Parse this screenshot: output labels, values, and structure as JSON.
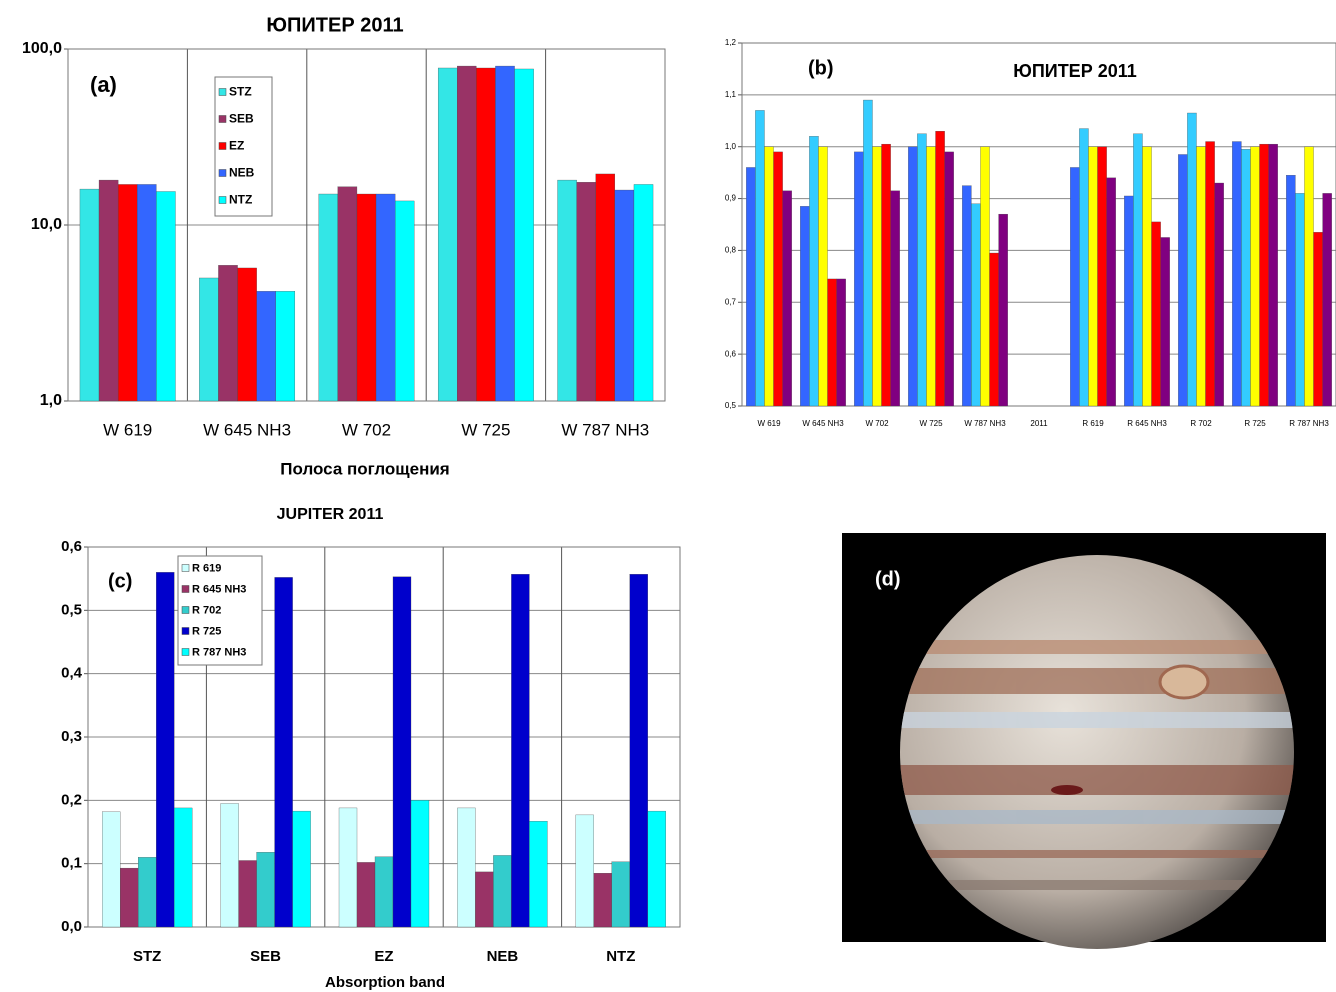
{
  "chart_data": [
    {
      "type": "bar",
      "title": "ЮПИТЕР  2011",
      "annotation": "(a)",
      "x_label": "Полоса поглощения",
      "categories": [
        "W 619",
        "W 645 NH3",
        "W 702",
        "W 725",
        "W 787 NH3"
      ],
      "log_scale": true,
      "grid": true,
      "ylim": [
        1,
        100
      ],
      "yticks": [
        {
          "value": 1,
          "label": "1,0"
        },
        {
          "value": 10,
          "label": "10,0"
        },
        {
          "value": 100,
          "label": "100,0"
        }
      ],
      "series": [
        {
          "name": "STZ",
          "color": "#33e6e6",
          "values": [
            16,
            5,
            15,
            78,
            18
          ]
        },
        {
          "name": "SEB",
          "color": "#993366",
          "values": [
            18,
            5.9,
            16.5,
            80,
            17.5
          ]
        },
        {
          "name": "EZ",
          "color": "#ff0000",
          "values": [
            17,
            5.7,
            15,
            78,
            19.5
          ]
        },
        {
          "name": "NEB",
          "color": "#3366ff",
          "values": [
            17,
            4.2,
            15,
            80,
            15.8
          ]
        },
        {
          "name": "NTZ",
          "color": "#00ffff",
          "values": [
            15.5,
            4.2,
            13.7,
            77,
            17
          ]
        }
      ]
    },
    {
      "type": "bar",
      "title": "ЮПИТЕР   2011",
      "annotation": "(b)",
      "categories": [
        "W 619",
        "W 645 NH3",
        "W 702",
        "W 725",
        "W 787 NH3",
        "2011",
        "R 619",
        "R 645 NH3",
        "R 702",
        "R 725",
        "R 787 NH3"
      ],
      "grid": true,
      "ylim": [
        0.5,
        1.2
      ],
      "yticks": [
        {
          "value": 0.5,
          "label": "0,5"
        },
        {
          "value": 0.6,
          "label": "0,6"
        },
        {
          "value": 0.7,
          "label": "0,7"
        },
        {
          "value": 0.8,
          "label": "0,8"
        },
        {
          "value": 0.9,
          "label": "0,9"
        },
        {
          "value": 1.0,
          "label": "1,0"
        },
        {
          "value": 1.1,
          "label": "1,1"
        },
        {
          "value": 1.2,
          "label": "1,2"
        }
      ],
      "series": [
        {
          "color": "#3366ff",
          "values": [
            0.96,
            0.885,
            0.99,
            1.0,
            0.925,
            null,
            0.96,
            0.905,
            0.985,
            1.01,
            0.945
          ]
        },
        {
          "color": "#33ccff",
          "values": [
            1.07,
            1.02,
            1.09,
            1.025,
            0.89,
            null,
            1.035,
            1.025,
            1.065,
            0.995,
            0.91
          ]
        },
        {
          "color": "#ffff00",
          "values": [
            1.0,
            1.0,
            1.0,
            1.0,
            1.0,
            null,
            1.0,
            1.0,
            1.0,
            1.0,
            1.0
          ]
        },
        {
          "color": "#ff0000",
          "values": [
            0.99,
            0.745,
            1.005,
            1.03,
            0.795,
            null,
            1.0,
            0.855,
            1.01,
            1.005,
            0.835
          ]
        },
        {
          "color": "#800080",
          "values": [
            0.915,
            0.745,
            0.915,
            0.99,
            0.87,
            null,
            0.94,
            0.825,
            0.93,
            1.005,
            0.91
          ]
        }
      ]
    },
    {
      "type": "bar",
      "title": "JUPITER  2011",
      "annotation": "(c)",
      "x_label": "Absorption band",
      "categories": [
        "STZ",
        "SEB",
        "EZ",
        "NEB",
        "NTZ"
      ],
      "grid": true,
      "ylim": [
        0,
        0.6
      ],
      "yticks": [
        {
          "value": 0,
          "label": "0,0"
        },
        {
          "value": 0.1,
          "label": "0,1"
        },
        {
          "value": 0.2,
          "label": "0,2"
        },
        {
          "value": 0.3,
          "label": "0,3"
        },
        {
          "value": 0.4,
          "label": "0,4"
        },
        {
          "value": 0.5,
          "label": "0,5"
        },
        {
          "value": 0.6,
          "label": "0,6"
        }
      ],
      "series": [
        {
          "name": "R 619",
          "color": "#ccffff",
          "values": [
            0.182,
            0.195,
            0.188,
            0.188,
            0.177
          ]
        },
        {
          "name": "R 645 NH3",
          "color": "#993366",
          "values": [
            0.093,
            0.105,
            0.102,
            0.087,
            0.085
          ]
        },
        {
          "name": "R 702",
          "color": "#33cccc",
          "values": [
            0.11,
            0.118,
            0.111,
            0.113,
            0.103
          ]
        },
        {
          "name": "R 725",
          "color": "#0000cc",
          "values": [
            0.56,
            0.552,
            0.553,
            0.557,
            0.557
          ]
        },
        {
          "name": "R 787 NH3",
          "color": "#00ffff",
          "values": [
            0.188,
            0.183,
            0.2,
            0.167,
            0.183
          ]
        }
      ]
    }
  ],
  "image_panel": {
    "label": "(d)"
  }
}
